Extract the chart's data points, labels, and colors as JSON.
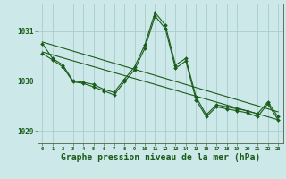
{
  "background_color": "#cce8e8",
  "grid_color": "#aacccc",
  "line_color": "#1a5c1a",
  "marker_color": "#1a5c1a",
  "xlabel": "Graphe pression niveau de la mer (hPa)",
  "xlabel_fontsize": 7.0,
  "xlim": [
    -0.5,
    23.5
  ],
  "ylim": [
    1028.75,
    1031.55
  ],
  "yticks": [
    1029,
    1030,
    1031
  ],
  "xticks": [
    0,
    1,
    2,
    3,
    4,
    5,
    6,
    7,
    8,
    9,
    10,
    11,
    12,
    13,
    14,
    15,
    16,
    17,
    18,
    19,
    20,
    21,
    22,
    23
  ],
  "series1_x": [
    0,
    1,
    2,
    3,
    4,
    5,
    6,
    7,
    8,
    9,
    10,
    11,
    12,
    13,
    14,
    15,
    16,
    17,
    18,
    19,
    20,
    21,
    22,
    23
  ],
  "series1_y": [
    1030.75,
    1030.45,
    1030.32,
    1030.0,
    1029.97,
    1029.93,
    1029.83,
    1029.77,
    1030.03,
    1030.28,
    1030.72,
    1031.37,
    1031.12,
    1030.32,
    1030.45,
    1029.68,
    1029.32,
    1029.52,
    1029.48,
    1029.44,
    1029.4,
    1029.34,
    1029.58,
    1029.28
  ],
  "series2_x": [
    0,
    1,
    2,
    3,
    4,
    5,
    6,
    7,
    8,
    9,
    10,
    11,
    12,
    13,
    14,
    15,
    16,
    17,
    18,
    19,
    20,
    21,
    22,
    23
  ],
  "series2_y": [
    1030.55,
    1030.42,
    1030.28,
    1029.98,
    1029.95,
    1029.88,
    1029.8,
    1029.72,
    1029.98,
    1030.22,
    1030.65,
    1031.3,
    1031.05,
    1030.25,
    1030.4,
    1029.62,
    1029.28,
    1029.48,
    1029.44,
    1029.4,
    1029.36,
    1029.28,
    1029.54,
    1029.22
  ],
  "trend1_x": [
    0,
    23
  ],
  "trend1_y": [
    1030.78,
    1029.38
  ],
  "trend2_x": [
    0,
    23
  ],
  "trend2_y": [
    1030.58,
    1029.22
  ]
}
